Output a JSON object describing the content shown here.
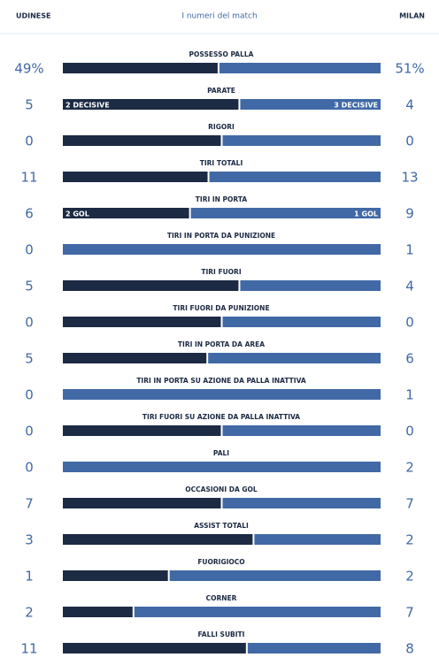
{
  "header": {
    "home_team": "UDINESE",
    "title": "I numeri del match",
    "away_team": "MILAN"
  },
  "colors": {
    "home": "#1c2a44",
    "away": "#4169a6"
  },
  "stats": [
    {
      "label": "POSSESSO PALLA",
      "home": 49,
      "home_label": "49%",
      "away": 51,
      "away_label": "51%"
    },
    {
      "label": "PARATE",
      "home": 5,
      "away": 4,
      "home_note": "2 DECISIVE",
      "away_note": "3 DECISIVE"
    },
    {
      "label": "RIGORI",
      "home": 0,
      "away": 0
    },
    {
      "label": "TIRI TOTALI",
      "home": 11,
      "away": 13
    },
    {
      "label": "TIRI IN PORTA",
      "home": 6,
      "away": 9,
      "home_note": "2 GOL",
      "away_note": "1 GOL"
    },
    {
      "label": "TIRI IN PORTA DA PUNIZIONE",
      "home": 0,
      "away": 1
    },
    {
      "label": "TIRI FUORI",
      "home": 5,
      "away": 4
    },
    {
      "label": "TIRI FUORI DA PUNIZIONE",
      "home": 0,
      "away": 0
    },
    {
      "label": "TIRI IN PORTA DA AREA",
      "home": 5,
      "away": 6
    },
    {
      "label": "TIRI IN PORTA SU AZIONE DA PALLA INATTIVA",
      "home": 0,
      "away": 1
    },
    {
      "label": "TIRI FUORI SU AZIONE DA PALLA INATTIVA",
      "home": 0,
      "away": 0
    },
    {
      "label": "PALI",
      "home": 0,
      "away": 2
    },
    {
      "label": "OCCASIONI DA GOL",
      "home": 7,
      "away": 7
    },
    {
      "label": "ASSIST TOTALI",
      "home": 3,
      "away": 2
    },
    {
      "label": "FUORIGIOCO",
      "home": 1,
      "away": 2
    },
    {
      "label": "CORNER",
      "home": 2,
      "away": 7
    },
    {
      "label": "FALLI SUBITI",
      "home": 11,
      "away": 8
    }
  ]
}
